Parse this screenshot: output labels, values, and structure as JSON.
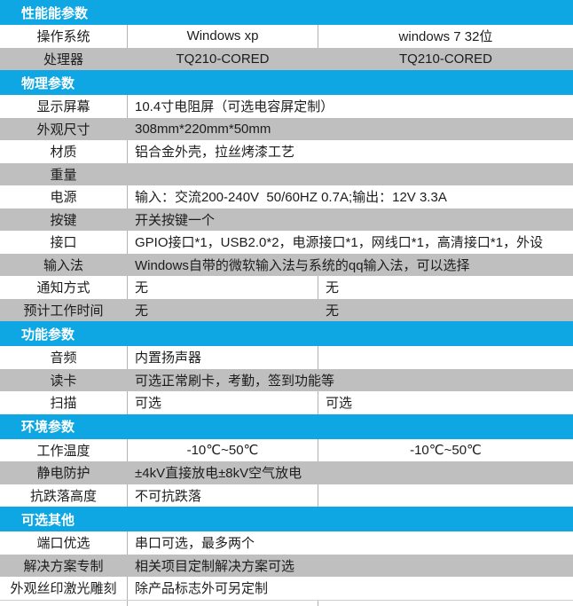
{
  "table": {
    "title_note": "product specification table",
    "colors": {
      "section_bg": "#0fa7e3",
      "section_text": "#ffffff",
      "gray_row_bg": "#bfbfbf",
      "white_row_bg": "#ffffff",
      "divider": "#b3b3b3",
      "text": "#1c1c1c"
    },
    "rows": [
      {
        "type": "section",
        "label": "性能能参数"
      },
      {
        "type": "row",
        "shade": "white",
        "align": "center",
        "label": "操作系统",
        "cells": [
          "Windows xp",
          "windows 7 32位"
        ]
      },
      {
        "type": "row",
        "shade": "gray",
        "align": "center",
        "label": "处理器",
        "cells": [
          "TQ210-CORED",
          "TQ210-CORED"
        ]
      },
      {
        "type": "section",
        "label": "物理参数"
      },
      {
        "type": "row",
        "shade": "white",
        "span": true,
        "label": "显示屏幕",
        "cells": [
          "10.4寸电阻屏（可选电容屏定制）"
        ]
      },
      {
        "type": "row",
        "shade": "gray",
        "span": true,
        "label": "外观尺寸",
        "cells": [
          "308mm*220mm*50mm"
        ]
      },
      {
        "type": "row",
        "shade": "white",
        "span": true,
        "label": "材质",
        "cells": [
          "铝合金外壳，拉丝烤漆工艺"
        ]
      },
      {
        "type": "row",
        "shade": "gray",
        "span": true,
        "label": "重量",
        "cells": [
          ""
        ]
      },
      {
        "type": "row",
        "shade": "white",
        "span": true,
        "label": "电源",
        "cells": [
          "输入：交流200-240V  50/60HZ 0.7A;输出：12V 3.3A"
        ]
      },
      {
        "type": "row",
        "shade": "gray",
        "span": true,
        "label": "按键",
        "cells": [
          "开关按键一个"
        ]
      },
      {
        "type": "row",
        "shade": "white",
        "span": true,
        "label": "接口",
        "cells": [
          "GPIO接口*1，USB2.0*2，电源接口*1，网线口*1，高清接口*1，外设"
        ]
      },
      {
        "type": "row",
        "shade": "gray",
        "span": true,
        "label": "输入法",
        "cells": [
          "Windows自带的微软输入法与系统的qq输入法，可以选择"
        ]
      },
      {
        "type": "row",
        "shade": "white",
        "align": "left",
        "label": "通知方式",
        "cells": [
          "无",
          "无"
        ]
      },
      {
        "type": "row",
        "shade": "gray",
        "align": "left",
        "label": "预计工作时间",
        "cells": [
          "无",
          "无"
        ]
      },
      {
        "type": "section",
        "label": "功能参数"
      },
      {
        "type": "row",
        "shade": "white",
        "align": "left",
        "label": "音频",
        "cells": [
          "内置扬声器",
          ""
        ]
      },
      {
        "type": "row",
        "shade": "gray",
        "span": true,
        "label": "读卡",
        "cells": [
          "可选正常刷卡，考勤，签到功能等"
        ]
      },
      {
        "type": "row",
        "shade": "white",
        "align": "left",
        "label": "扫描",
        "cells": [
          "可选",
          "可选"
        ]
      },
      {
        "type": "section",
        "label": "环境参数"
      },
      {
        "type": "row",
        "shade": "white",
        "align": "center",
        "label": "工作温度",
        "cells": [
          "-10℃~50℃",
          "-10℃~50℃"
        ]
      },
      {
        "type": "row",
        "shade": "gray",
        "span": true,
        "label": "静电防护",
        "cells": [
          "±4kV直接放电±8kV空气放电"
        ]
      },
      {
        "type": "row",
        "shade": "white",
        "align": "left",
        "label": "抗跌落高度",
        "cells": [
          "不可抗跌落",
          ""
        ]
      },
      {
        "type": "section",
        "label": "可选其他"
      },
      {
        "type": "row",
        "shade": "white",
        "span": true,
        "label": "端口优选",
        "cells": [
          "串口可选，最多两个"
        ]
      },
      {
        "type": "row",
        "shade": "gray",
        "span": true,
        "label": "解决方案专制",
        "cells": [
          "相关项目定制解决方案可选"
        ]
      },
      {
        "type": "row",
        "shade": "white",
        "span": true,
        "label": "外观丝印激光雕刻",
        "cells": [
          "除产品标志外可另定制"
        ]
      }
    ]
  }
}
